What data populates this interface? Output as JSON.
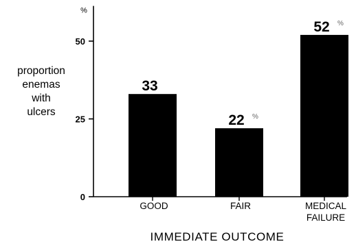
{
  "chart_data": {
    "type": "bar",
    "title": "",
    "xlabel": "IMMEDIATE OUTCOME",
    "ylabel_lines": [
      "proportion",
      "enemas",
      "with",
      "ulcers"
    ],
    "y_unit_symbol": "%",
    "categories": [
      "GOOD",
      "FAIR",
      "MEDICAL FAILURE"
    ],
    "category_label_lines": [
      [
        "GOOD"
      ],
      [
        "FAIR"
      ],
      [
        "MEDICAL",
        "FAILURE"
      ]
    ],
    "values": [
      33,
      22,
      52
    ],
    "data_labels": [
      "33",
      "22",
      "52"
    ],
    "data_label_suffixes": [
      "",
      "%",
      "%"
    ],
    "yticks": [
      "0",
      "25",
      "50"
    ],
    "ytick_values": [
      0,
      25,
      50
    ],
    "ylim": [
      0,
      60
    ],
    "bar_color": "#000000",
    "grid": false,
    "legend": "none"
  }
}
